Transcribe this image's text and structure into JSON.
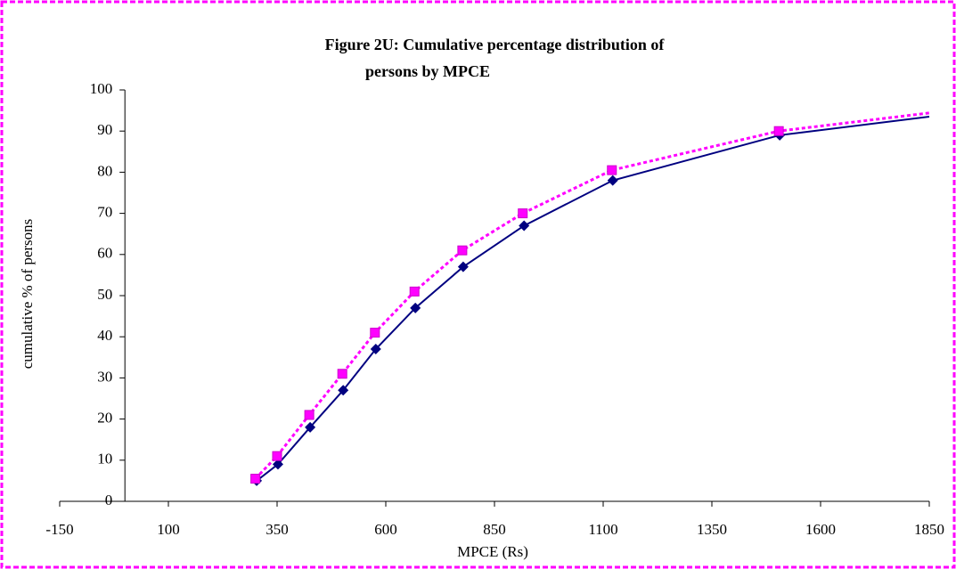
{
  "chart_data": {
    "type": "line",
    "title": [
      "Figure 2U: Cumulative percentage distribution of",
      "persons by MPCE"
    ],
    "xlabel": "MPCE (Rs)",
    "ylabel": "cumulative % of persons",
    "series": [
      {
        "color": "#000080",
        "marker": "diamond",
        "dash": false,
        "x": [
          303,
          352,
          426,
          502,
          577,
          668,
          778,
          918,
          1122,
          1506,
          1850
        ],
        "values": [
          5,
          9,
          18,
          27,
          37,
          47,
          57,
          67,
          78,
          89,
          93.5
        ]
      },
      {
        "color": "#ff00ff",
        "marker": "square",
        "dash": true,
        "x": [
          300,
          350,
          424,
          500,
          575,
          666,
          776,
          915,
          1120,
          1504,
          1850
        ],
        "values": [
          5.5,
          11,
          21,
          31,
          41,
          51,
          61,
          70,
          80.5,
          90,
          94.4
        ]
      }
    ],
    "xlim": [
      -150,
      1850
    ],
    "xticks": [
      -150,
      100,
      350,
      600,
      850,
      1100,
      1350,
      1600,
      1850
    ],
    "ylim": [
      0,
      100
    ],
    "yticks": [
      0,
      10,
      20,
      30,
      40,
      50,
      60,
      70,
      80,
      90,
      100
    ],
    "grid": false
  }
}
